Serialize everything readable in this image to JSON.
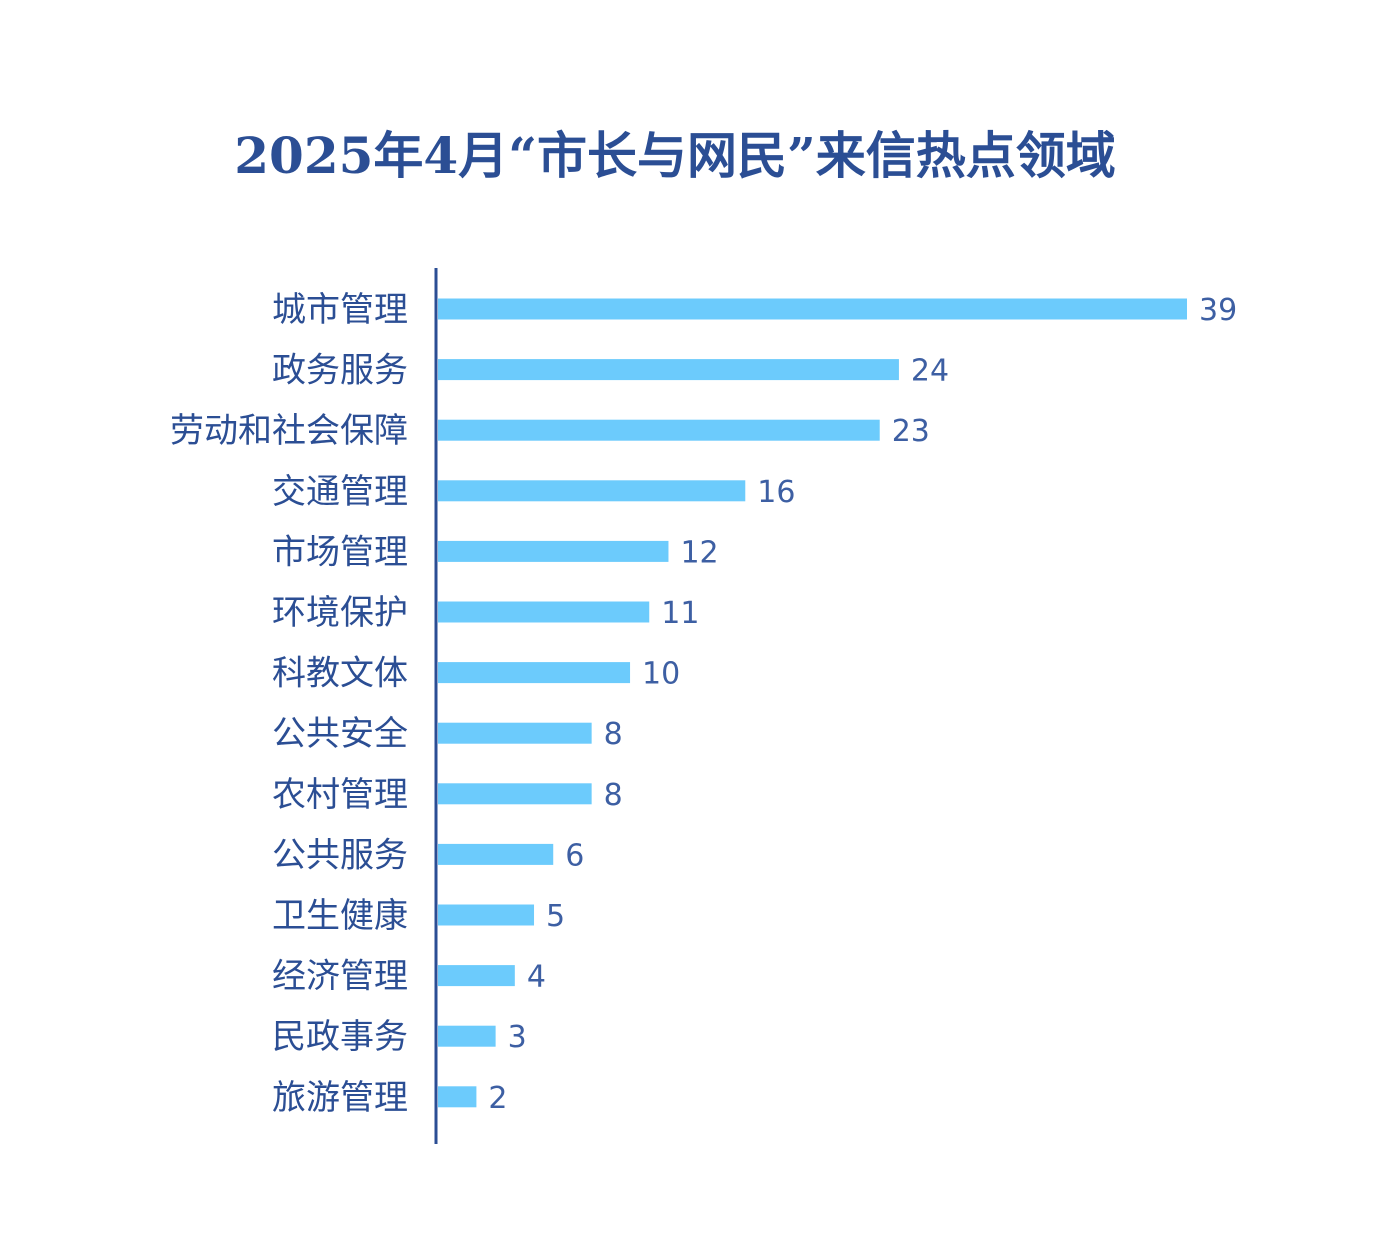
{
  "title": "2025年4月“市长与网民”来信热点领域",
  "colors": {
    "bar": "#6ccbfc",
    "axis": "#2b4e94",
    "text": "#2b4e94"
  },
  "chart_data": {
    "type": "bar",
    "orientation": "horizontal",
    "title": "2025年4月“市长与网民”来信热点领域",
    "xlabel": "",
    "ylabel": "",
    "grid": false,
    "legend": "none",
    "xlim": [
      0,
      39
    ],
    "categories": [
      "城市管理",
      "政务服务",
      "劳动和社会保障",
      "交通管理",
      "市场管理",
      "环境保护",
      "科教文体",
      "公共安全",
      "农村管理",
      "公共服务",
      "卫生健康",
      "经济管理",
      "民政事务",
      "旅游管理"
    ],
    "values": [
      39,
      24,
      23,
      16,
      12,
      11,
      10,
      8,
      8,
      6,
      5,
      4,
      3,
      2
    ]
  }
}
